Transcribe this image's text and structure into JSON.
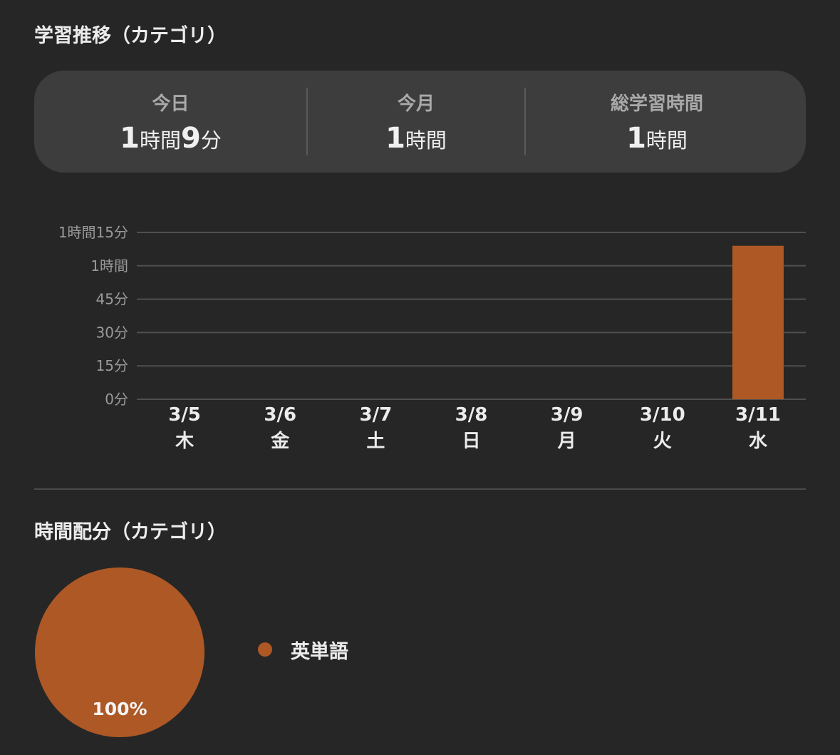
{
  "trend": {
    "title": "学習推移（カテゴリ）"
  },
  "summary": {
    "today": {
      "label": "今日",
      "h_num": "1",
      "h_unit": "時間",
      "m_num": "9",
      "m_unit": "分"
    },
    "month": {
      "label": "今月",
      "h_num": "1",
      "h_unit": "時間"
    },
    "total": {
      "label": "総学習時間",
      "h_num": "1",
      "h_unit": "時間"
    }
  },
  "distribution": {
    "title": "時間配分（カテゴリ）"
  },
  "colors": {
    "accent": "#ad5825",
    "grid": "#4f4f4f",
    "axis_text": "#9a9a9a",
    "category_text": "#ececec"
  },
  "chart_data": [
    {
      "type": "bar",
      "categories": [
        "3/5",
        "3/6",
        "3/7",
        "3/8",
        "3/9",
        "3/10",
        "3/11"
      ],
      "weekdays": [
        "木",
        "金",
        "土",
        "日",
        "月",
        "火",
        "水"
      ],
      "values": [
        0,
        0,
        0,
        0,
        0,
        0,
        69
      ],
      "value_unit": "minutes",
      "ylim": [
        0,
        75
      ],
      "yticks": [
        0,
        15,
        30,
        45,
        60,
        75
      ],
      "ytick_labels": [
        "0分",
        "15分",
        "30分",
        "45分",
        "1時間",
        "1時間15分"
      ],
      "grid": true,
      "title": "",
      "xlabel": "",
      "ylabel": ""
    },
    {
      "type": "pie",
      "categories": [
        "英単語"
      ],
      "values": [
        100
      ],
      "labels": [
        "100%"
      ],
      "legend_position": "right"
    }
  ]
}
